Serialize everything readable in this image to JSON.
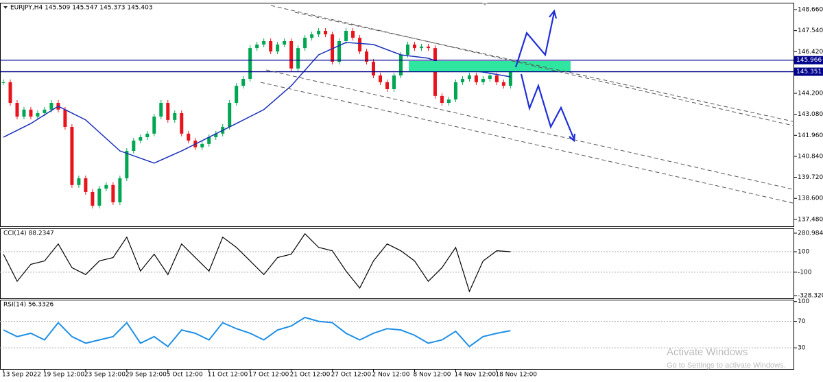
{
  "chart_data": [
    {
      "type": "candlestick",
      "title": "EURJPY,H4 145.509 145.547 145.373 145.403",
      "values": [
        144.79,
        143.69,
        142.96,
        143.33,
        142.96,
        143.14,
        143.33,
        143.69,
        143.33,
        142.41,
        139.31,
        139.67,
        138.94,
        138.21,
        139.12,
        139.31,
        138.39,
        139.67,
        141.13,
        141.68,
        141.86,
        142.05,
        142.96,
        143.69,
        142.78,
        143.14,
        142.05,
        141.68,
        141.32,
        141.5,
        141.86,
        142.05,
        142.41,
        143.69,
        144.6,
        144.97,
        146.61,
        146.8,
        146.98,
        146.43,
        146.8,
        146.98,
        145.52,
        146.61,
        147.16,
        147.34,
        147.53,
        147.34,
        145.88,
        146.98,
        147.53,
        147.16,
        146.43,
        145.88,
        145.15,
        144.79,
        144.42,
        145.15,
        146.25,
        146.8,
        146.61,
        146.69,
        146.61,
        144.06,
        143.69,
        143.87,
        144.79,
        144.97,
        145.15,
        144.79,
        144.97,
        145.15,
        144.79,
        144.6,
        145.4
      ],
      "up_color": "#00a651",
      "down_color": "#e8141b",
      "ma": {
        "x": [
          0,
          4,
          8,
          12,
          17,
          22,
          26,
          30,
          34,
          38,
          42,
          46,
          50,
          54,
          58,
          62,
          66,
          70,
          74
        ],
        "values": [
          141.86,
          142.59,
          143.51,
          142.78,
          141.13,
          140.48,
          141.13,
          141.86,
          142.59,
          143.33,
          144.6,
          146.25,
          146.91,
          146.8,
          146.25,
          146.07,
          145.52,
          145.33,
          145.08
        ],
        "color": "#1a2fb8"
      },
      "levels": [
        {
          "value": 145.966,
          "label": "145.966"
        },
        {
          "value": 145.351,
          "label": "145.351"
        }
      ],
      "level_color": "#00008b",
      "xlim": [
        -0.5,
        115.3
      ],
      "ylim": [
        137.11,
        148.99
      ],
      "yticks": [
        {
          "value": 148.66,
          "label": "148.660"
        },
        {
          "value": 147.54,
          "label": "147.540"
        },
        {
          "value": 146.42,
          "label": "146.420"
        },
        {
          "value": 144.2,
          "label": "144.200"
        },
        {
          "value": 143.08,
          "label": "143.080"
        },
        {
          "value": 141.96,
          "label": "141.960"
        },
        {
          "value": 140.84,
          "label": "140.840"
        },
        {
          "value": 139.72,
          "label": "139.720"
        },
        {
          "value": 138.6,
          "label": "138.600"
        },
        {
          "value": 137.48,
          "label": "137.480"
        }
      ]
    },
    {
      "type": "line",
      "title": "CCI(14) 88.2347",
      "color": "#000000",
      "x": [
        0,
        2,
        4,
        6,
        8,
        10,
        12,
        14,
        16,
        18,
        20,
        22,
        24,
        26,
        28,
        30,
        32,
        34,
        36,
        38,
        40,
        42,
        44,
        46,
        48,
        50,
        52,
        54,
        56,
        58,
        60,
        62,
        64,
        66,
        68,
        70,
        72,
        74
      ],
      "values": [
        76,
        -189,
        -23,
        10,
        176,
        -56,
        -123,
        10,
        43,
        242,
        -89,
        76,
        -123,
        176,
        43,
        -89,
        242,
        142,
        10,
        -123,
        43,
        76,
        275,
        142,
        109,
        -89,
        -255,
        10,
        176,
        109,
        10,
        -189,
        -56,
        142,
        -288,
        10,
        109,
        100
      ],
      "xlim": [
        -0.5,
        115.3
      ],
      "ylim": [
        -355,
        321
      ],
      "yticks": [
        280.9845,
        100,
        -100,
        -328.3202
      ],
      "level_lines": [
        100,
        -100
      ]
    },
    {
      "type": "line",
      "title": "RSI(14) 56.3326",
      "color": "#1e8fe6",
      "x": [
        0,
        2,
        4,
        6,
        8,
        10,
        12,
        14,
        16,
        18,
        20,
        22,
        24,
        26,
        28,
        30,
        32,
        34,
        36,
        38,
        40,
        42,
        44,
        46,
        48,
        50,
        52,
        54,
        56,
        58,
        60,
        62,
        64,
        66,
        68,
        70,
        72,
        74
      ],
      "values": [
        57,
        47,
        52,
        42,
        68,
        47,
        37,
        42,
        47,
        68,
        37,
        47,
        32,
        57,
        52,
        42,
        68,
        59,
        52,
        42,
        57,
        63,
        76,
        70,
        68,
        52,
        42,
        52,
        59,
        57,
        49,
        37,
        42,
        55,
        32,
        47,
        52,
        56
      ],
      "xlim": [
        -0.5,
        115.3
      ],
      "ylim": [
        -2,
        101.8
      ],
      "yticks": [
        100,
        70,
        30
      ],
      "level_lines": [
        70,
        30
      ],
      "xticks": [
        {
          "value": 0,
          "label": "13 Sep 2022"
        },
        {
          "value": 6,
          "label": "19 Sep 12:00"
        },
        {
          "value": 12,
          "label": "23 Sep 12:00"
        },
        {
          "value": 18,
          "label": "29 Sep 12:00"
        },
        {
          "value": 24,
          "label": "5 Oct 12:00"
        },
        {
          "value": 30,
          "label": "11 Oct 12:00"
        },
        {
          "value": 36,
          "label": "17 Oct 12:00"
        },
        {
          "value": 42,
          "label": "21 Oct 12:00"
        },
        {
          "value": 48,
          "label": "27 Oct 12:00"
        },
        {
          "value": 54,
          "label": "2 Nov 12:00"
        },
        {
          "value": 60,
          "label": "8 Nov 12:00"
        },
        {
          "value": 66,
          "label": "14 Nov 12:00"
        },
        {
          "value": 72,
          "label": "18 Nov 12:00"
        }
      ]
    }
  ],
  "watermark": {
    "title": "Activate Windows",
    "subtitle": "Go to Settings to activate Windows."
  }
}
